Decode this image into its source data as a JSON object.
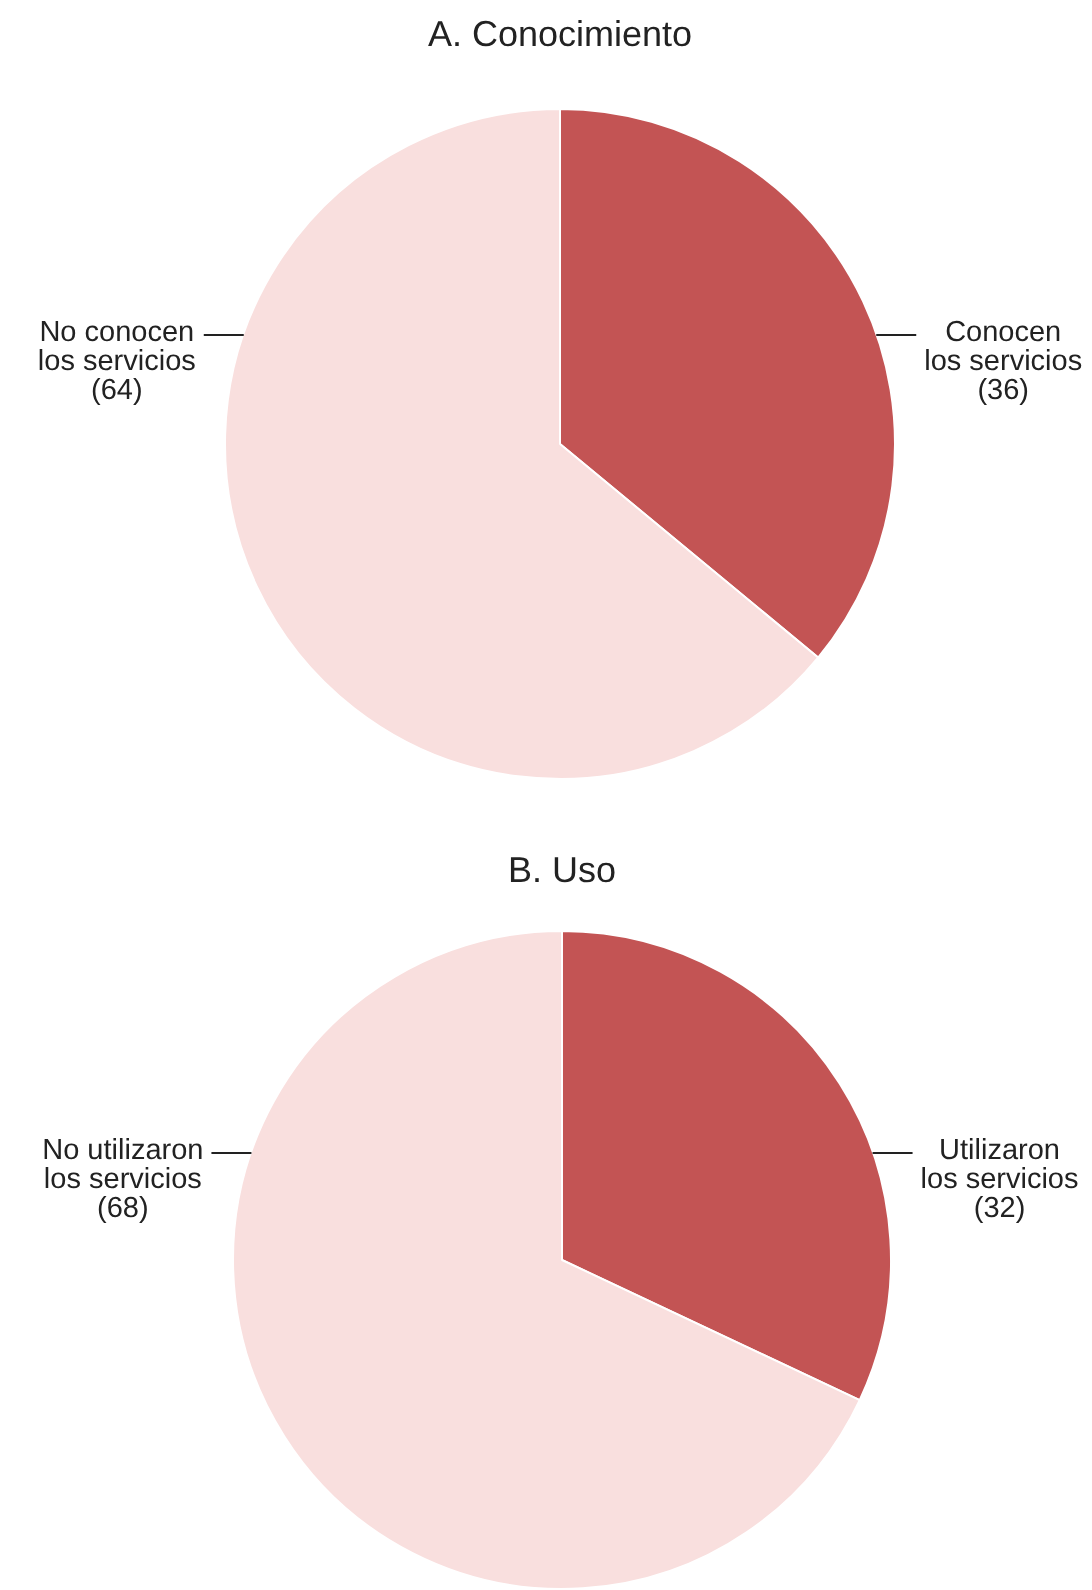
{
  "chart_data": [
    {
      "type": "pie",
      "title": "A. Conocimiento",
      "categories": [
        "Conocen los servicios",
        "No conocen los servicios"
      ],
      "values": [
        36,
        64
      ],
      "value_labels": [
        "(36)",
        "(64)"
      ],
      "colors": [
        "#c35454",
        "#f9dfde"
      ]
    },
    {
      "type": "pie",
      "title": "B. Uso",
      "categories": [
        "Utilizaron los servicios",
        "No utilizaron los servicios"
      ],
      "values": [
        32,
        68
      ],
      "value_labels": [
        "(32)",
        "(68)"
      ],
      "colors": [
        "#c35454",
        "#f9dfde"
      ]
    }
  ]
}
